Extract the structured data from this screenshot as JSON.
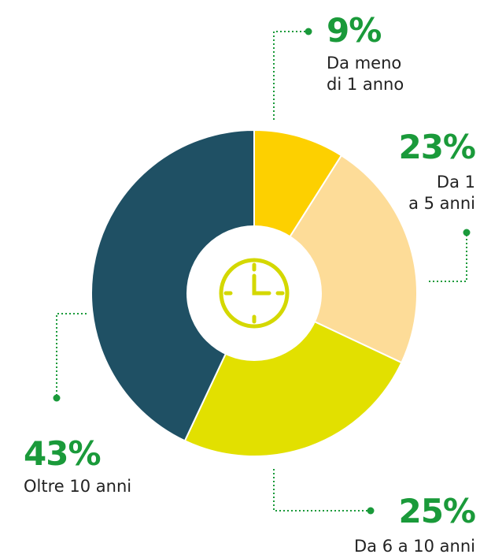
{
  "chart_data": {
    "type": "donut",
    "categories": [
      "Da meno\ndi 1 anno",
      "Da 1\na 5 anni",
      "Da 6 a 10 anni",
      "Oltre 10 anni"
    ],
    "values": [
      9,
      23,
      25,
      43
    ],
    "value_labels": [
      "9%",
      "23%",
      "25%",
      "43%"
    ],
    "colors": [
      "#fdd000",
      "#fddc98",
      "#e2e000",
      "#1f5064"
    ]
  }
}
